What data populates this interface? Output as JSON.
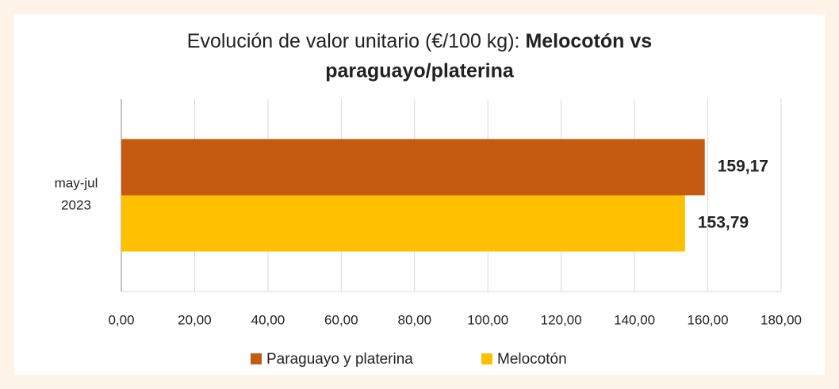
{
  "chart_data": {
    "type": "hbar",
    "title": "Evolución de valor unitario (€/100 kg):",
    "title_emphasis": "Melocotón vs paraguayo/platerina",
    "categories": [
      "may-jul 2023"
    ],
    "series": [
      {
        "name": "Paraguayo y platerina",
        "color": "#c55a11",
        "label_color": "#9e480e",
        "values": [
          159.17
        ],
        "value_labels": [
          "159,17"
        ]
      },
      {
        "name": "Melocotón",
        "color": "#ffc000",
        "label_color": "#7f6000",
        "values": [
          153.79
        ],
        "value_labels": [
          "153,79"
        ]
      }
    ],
    "xlim": [
      0,
      180
    ],
    "xticks": [
      {
        "value": 0,
        "label": "0,00"
      },
      {
        "value": 20,
        "label": "20,00"
      },
      {
        "value": 40,
        "label": "40,00"
      },
      {
        "value": 60,
        "label": "60,00"
      },
      {
        "value": 80,
        "label": "80,00"
      },
      {
        "value": 100,
        "label": "100,00"
      },
      {
        "value": 120,
        "label": "120,00"
      },
      {
        "value": 140,
        "label": "140,00"
      },
      {
        "value": 160,
        "label": "160,00"
      },
      {
        "value": 180,
        "label": "180,00"
      }
    ],
    "grid": true,
    "legend": "bottom"
  }
}
